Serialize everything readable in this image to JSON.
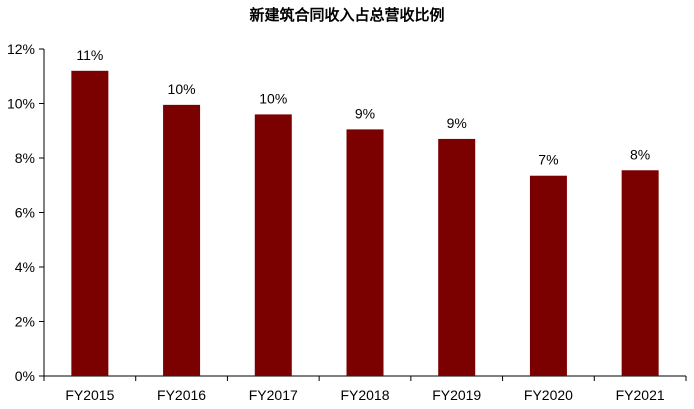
{
  "chart_data": {
    "type": "bar",
    "title": "新建筑合同收入占总营收比例",
    "categories": [
      "FY2015",
      "FY2016",
      "FY2017",
      "FY2018",
      "FY2019",
      "FY2020",
      "FY2021"
    ],
    "values": [
      11.2,
      9.95,
      9.6,
      9.05,
      8.7,
      7.35,
      7.55
    ],
    "data_labels": [
      "11%",
      "10%",
      "10%",
      "9%",
      "9%",
      "7%",
      "8%"
    ],
    "ylim": [
      0,
      12
    ],
    "y_ticks": [
      0,
      2,
      4,
      6,
      8,
      10,
      12
    ],
    "y_tick_labels": [
      "0%",
      "2%",
      "4%",
      "6%",
      "8%",
      "10%",
      "12%"
    ],
    "xlabel": "",
    "ylabel": "",
    "grid": false,
    "legend": "none",
    "bar_color": "#7b0000"
  }
}
